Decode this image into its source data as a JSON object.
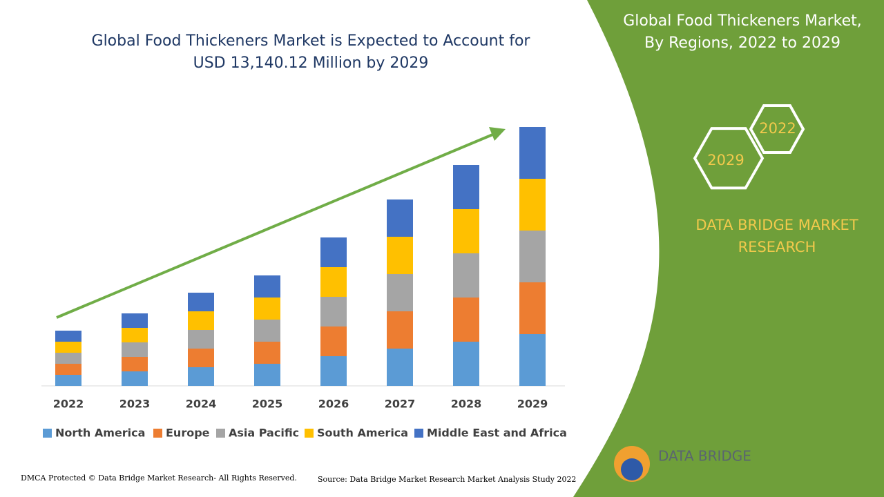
{
  "chart_data": {
    "type": "bar",
    "stacked": true,
    "title": "Global Food Thickeners Market is Expected to Account for USD 13,140.12 Million by 2029",
    "categories": [
      "2022",
      "2023",
      "2024",
      "2025",
      "2026",
      "2027",
      "2028",
      "2029"
    ],
    "series": [
      {
        "name": "North America",
        "color": "#5b9bd5",
        "values": [
          16,
          21,
          27,
          32,
          43,
          54,
          64,
          75
        ]
      },
      {
        "name": "Europe",
        "color": "#ed7d31",
        "values": [
          16,
          21,
          27,
          32,
          43,
          54,
          64,
          75
        ]
      },
      {
        "name": "Asia Pacific",
        "color": "#a5a5a5",
        "values": [
          16,
          21,
          27,
          32,
          43,
          54,
          64,
          75
        ]
      },
      {
        "name": "South America",
        "color": "#ffc000",
        "values": [
          16,
          21,
          27,
          32,
          43,
          54,
          64,
          75
        ]
      },
      {
        "name": "Middle East and Africa",
        "color": "#4472c4",
        "values": [
          16,
          21,
          27,
          32,
          43,
          54,
          64,
          75
        ]
      }
    ],
    "ylim": [
      0,
      375
    ],
    "legend": "bottom"
  },
  "panel": {
    "title": "Global Food Thickeners Market, By Regions, 2022 to 2029",
    "hex_top": "2022",
    "hex_bottom": "2029",
    "brand": "DATA BRIDGE MARKET RESEARCH",
    "logo": "DATA BRIDGE"
  },
  "footer": {
    "left": "DMCA Protected © Data Bridge Market Research- All Rights Reserved.",
    "right": "Source: Data Bridge Market Research Market Analysis Study 2022"
  }
}
